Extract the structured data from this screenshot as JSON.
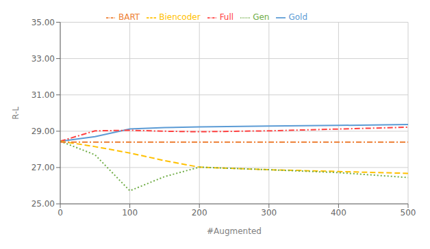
{
  "chart_data": {
    "type": "line",
    "xlabel": "#Augmented",
    "ylabel": "R-L",
    "series": [
      {
        "name": "Gold",
        "color": "#5B9BD5",
        "line_style": "solid",
        "x": [
          0,
          50,
          100,
          150,
          200,
          300,
          400,
          500
        ],
        "values": [
          28.45,
          28.7,
          29.12,
          29.2,
          29.24,
          29.28,
          29.32,
          29.37
        ]
      },
      {
        "name": "Full",
        "color": "#FF4040",
        "line_style": "dashdot",
        "x": [
          0,
          50,
          100,
          150,
          200,
          300,
          400,
          500
        ],
        "values": [
          28.45,
          29.02,
          29.05,
          29.0,
          28.97,
          29.02,
          29.12,
          29.22
        ]
      },
      {
        "name": "Biencoder",
        "color": "#FFC000",
        "line_style": "dashed",
        "x": [
          0,
          50,
          100,
          150,
          200,
          300,
          400,
          500
        ],
        "values": [
          28.45,
          28.15,
          27.8,
          27.38,
          27.02,
          26.88,
          26.78,
          26.68
        ]
      },
      {
        "name": "Gen",
        "color": "#70AD47",
        "line_style": "dotted",
        "x": [
          0,
          50,
          100,
          150,
          200,
          300,
          400,
          500
        ],
        "values": [
          28.45,
          27.7,
          25.72,
          26.5,
          27.02,
          26.88,
          26.72,
          26.45
        ]
      },
      {
        "name": "BART",
        "color": "#ED7D31",
        "line_style": "dashdot",
        "x": [
          0,
          50,
          100,
          200,
          300,
          400,
          500
        ],
        "values": [
          28.4,
          28.4,
          28.4,
          28.4,
          28.4,
          28.4,
          28.4
        ]
      }
    ],
    "xlim": [
      0,
      500
    ],
    "xticks": [
      0,
      100,
      200,
      300,
      400,
      500
    ],
    "ylim": [
      25.0,
      35.0
    ],
    "yticks": [
      {
        "value": 25.0,
        "label": "25.00"
      },
      {
        "value": 27.0,
        "label": "27.00"
      },
      {
        "value": 29.0,
        "label": "29.00"
      },
      {
        "value": 31.0,
        "label": "31.00"
      },
      {
        "value": 33.0,
        "label": "33.00"
      },
      {
        "value": 35.0,
        "label": "35.00"
      }
    ],
    "grid": true,
    "legend": "top"
  }
}
